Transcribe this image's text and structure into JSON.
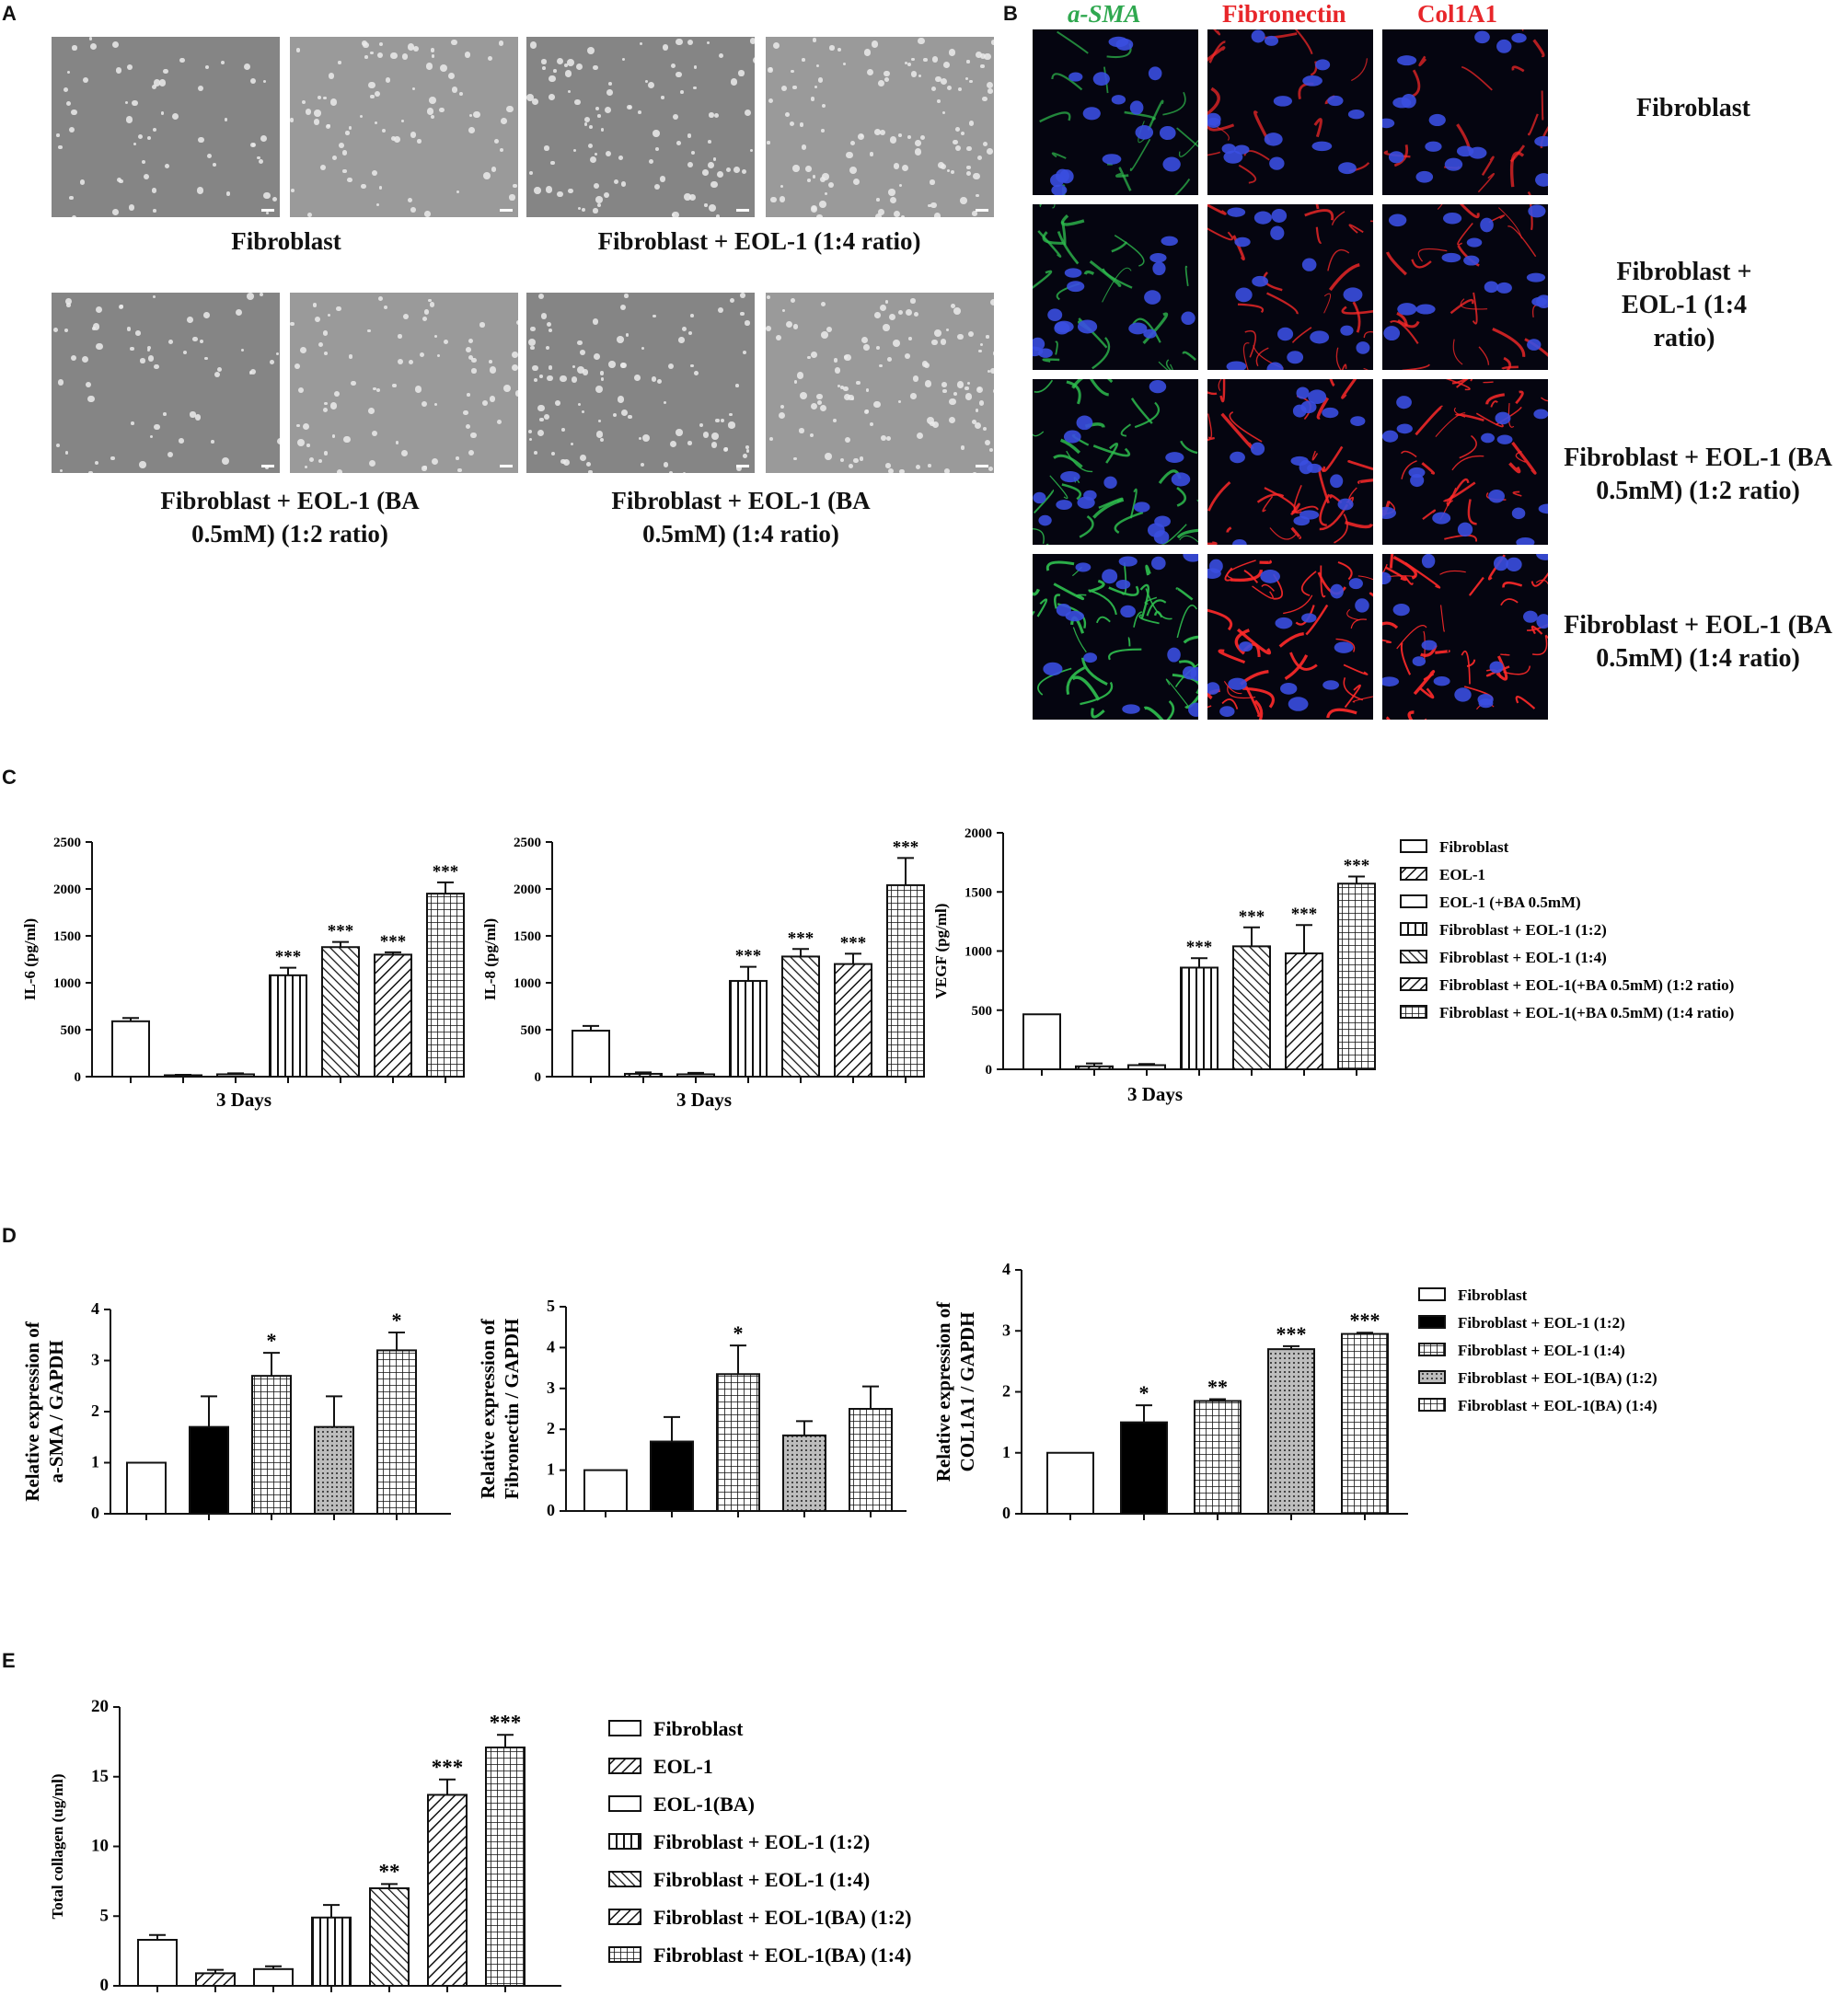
{
  "panels": {
    "a": "A",
    "b": "B",
    "c": "C",
    "d": "D",
    "e": "E"
  },
  "panelA": {
    "captions": [
      "Fibroblast",
      "Fibroblast + EOL-1 (1:4 ratio)",
      "Fibroblast + EOL-1 (BA 0.5mM) (1:2 ratio)",
      "Fibroblast + EOL-1 (BA 0.5mM) (1:4 ratio)"
    ]
  },
  "panelB": {
    "columns": [
      {
        "label": "a-SMA",
        "color": "#2fa84f"
      },
      {
        "label": "Fibronectin",
        "color": "#e8262a"
      },
      {
        "label": "Col1A1",
        "color": "#e8262a"
      }
    ],
    "rows": [
      "Fibroblast",
      "Fibroblast + EOL-1 (1:4 ratio)",
      "Fibroblast + EOL-1 (BA 0.5mM) (1:2 ratio)",
      "Fibroblast + EOL-1 (BA 0.5mM) (1:4 ratio)"
    ]
  },
  "panelC_legend": [
    "Fibroblast",
    "EOL-1",
    "EOL-1 (+BA 0.5mM)",
    "Fibroblast + EOL-1 (1:2)",
    "Fibroblast + EOL-1 (1:4)",
    "Fibroblast + EOL-1(+BA 0.5mM) (1:2 ratio)",
    "Fibroblast + EOL-1(+BA 0.5mM) (1:4 ratio)"
  ],
  "panelD_legend": [
    "Fibroblast",
    "Fibroblast + EOL-1 (1:2)",
    "Fibroblast + EOL-1 (1:4)",
    "Fibroblast + EOL-1(BA) (1:2)",
    "Fibroblast + EOL-1(BA) (1:4)"
  ],
  "panelE_legend": [
    "Fibroblast",
    "EOL-1",
    "EOL-1(BA)",
    "Fibroblast + EOL-1 (1:2)",
    "Fibroblast + EOL-1 (1:4)",
    "Fibroblast + EOL-1(BA) (1:2)",
    "Fibroblast + EOL-1(BA) (1:4)"
  ],
  "chart_data": [
    {
      "id": "C1",
      "type": "bar",
      "ylabel": "IL-6 (pg/ml)",
      "xlabel": "3 Days",
      "ylim": [
        0,
        2500
      ],
      "yticks": [
        0,
        500,
        1000,
        1500,
        2000,
        2500
      ],
      "values": [
        590,
        15,
        25,
        1080,
        1380,
        1300,
        1950
      ],
      "errors": [
        35,
        5,
        10,
        80,
        55,
        25,
        120
      ],
      "stars": [
        "",
        "",
        "",
        "***",
        "***",
        "***",
        "***"
      ],
      "patterns": [
        "white",
        "diag",
        "white",
        "vert",
        "diag2",
        "diag",
        "check"
      ]
    },
    {
      "id": "C2",
      "type": "bar",
      "ylabel": "IL-8 (pg/ml)",
      "xlabel": "3 Days",
      "ylim": [
        0,
        2500
      ],
      "yticks": [
        0,
        500,
        1000,
        1500,
        2000,
        2500
      ],
      "values": [
        490,
        30,
        25,
        1020,
        1280,
        1200,
        2040
      ],
      "errors": [
        50,
        15,
        15,
        150,
        80,
        110,
        290
      ],
      "stars": [
        "",
        "",
        "",
        "***",
        "***",
        "***",
        "***"
      ],
      "patterns": [
        "white",
        "diag",
        "white",
        "vert",
        "diag2",
        "diag",
        "check"
      ]
    },
    {
      "id": "C3",
      "type": "bar",
      "ylabel": "VEGF (pg/ml)",
      "xlabel": "3 Days",
      "ylim": [
        0,
        2000
      ],
      "yticks": [
        0,
        500,
        1000,
        1500,
        2000
      ],
      "values": [
        465,
        25,
        35,
        860,
        1040,
        980,
        1570
      ],
      "errors": [
        0,
        25,
        10,
        80,
        160,
        240,
        60
      ],
      "stars": [
        "",
        "",
        "",
        "***",
        "***",
        "***",
        "***"
      ],
      "patterns": [
        "white",
        "diag",
        "white",
        "vert",
        "diag2",
        "diag",
        "check"
      ]
    },
    {
      "id": "D1",
      "type": "bar",
      "ylabel": "Relative expression of a-SMA / GAPDH",
      "xlabel": "",
      "ylim": [
        0,
        4
      ],
      "yticks": [
        0,
        1,
        2,
        3,
        4
      ],
      "values": [
        1,
        1.7,
        2.7,
        1.7,
        3.2
      ],
      "errors": [
        0,
        0.6,
        0.45,
        0.6,
        0.35
      ],
      "stars": [
        "",
        "",
        "*",
        "",
        "*"
      ],
      "patterns": [
        "white",
        "black",
        "check",
        "dots",
        "check"
      ]
    },
    {
      "id": "D2",
      "type": "bar",
      "ylabel": "Relative expression of Fibronectin / GAPDH",
      "xlabel": "",
      "ylim": [
        0,
        5
      ],
      "yticks": [
        0,
        1,
        2,
        3,
        4,
        5
      ],
      "values": [
        1,
        1.7,
        3.35,
        1.85,
        2.5
      ],
      "errors": [
        0,
        0.6,
        0.7,
        0.35,
        0.55
      ],
      "stars": [
        "",
        "",
        "*",
        "",
        ""
      ],
      "patterns": [
        "white",
        "black",
        "check",
        "dots",
        "check"
      ]
    },
    {
      "id": "D3",
      "type": "bar",
      "ylabel": "Relative expression of COL1A1 / GAPDH",
      "xlabel": "",
      "ylim": [
        0,
        4
      ],
      "yticks": [
        0,
        1,
        2,
        3,
        4
      ],
      "values": [
        1,
        1.5,
        1.85,
        2.7,
        2.95
      ],
      "errors": [
        0,
        0.28,
        0.03,
        0.05,
        0.02
      ],
      "stars": [
        "",
        "*",
        "**",
        "***",
        "***"
      ],
      "patterns": [
        "white",
        "black",
        "check",
        "dots",
        "check"
      ]
    },
    {
      "id": "E1",
      "type": "bar",
      "ylabel": "Total collagen (ug/ml)",
      "xlabel": "",
      "ylim": [
        0,
        20
      ],
      "yticks": [
        0,
        5,
        10,
        15,
        20
      ],
      "values": [
        3.3,
        0.9,
        1.2,
        4.9,
        7.0,
        13.7,
        17.1
      ],
      "errors": [
        0.35,
        0.25,
        0.2,
        0.9,
        0.3,
        1.1,
        0.9
      ],
      "stars": [
        "",
        "",
        "",
        "",
        "**",
        "***",
        "***"
      ],
      "patterns": [
        "white",
        "diag",
        "white",
        "vert",
        "diag2",
        "diag",
        "check"
      ]
    }
  ]
}
